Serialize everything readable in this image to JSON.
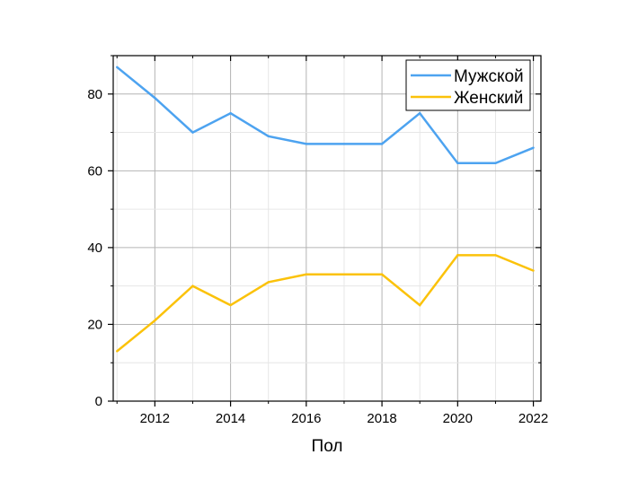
{
  "chart_data": {
    "type": "line",
    "title": "",
    "xlabel": "Пол",
    "ylabel": "",
    "x": [
      2011,
      2012,
      2013,
      2014,
      2015,
      2016,
      2017,
      2018,
      2019,
      2020,
      2021,
      2022
    ],
    "series": [
      {
        "name": "Мужской",
        "color": "#4da3f0",
        "values": [
          87,
          79,
          70,
          75,
          69,
          67,
          67,
          67,
          75,
          62,
          62,
          66
        ]
      },
      {
        "name": "Женский",
        "color": "#fbc20a",
        "values": [
          13,
          21,
          30,
          25,
          31,
          33,
          33,
          33,
          25,
          38,
          38,
          34
        ]
      }
    ],
    "xlim": [
      2010.9,
      2022.2
    ],
    "ylim": [
      0,
      90
    ],
    "xticks": [
      "2012",
      "2014",
      "2016",
      "2018",
      "2020",
      "2022"
    ],
    "yticks": [
      "0",
      "20",
      "40",
      "60",
      "80"
    ],
    "grid": true,
    "legend_position": "top-right"
  }
}
